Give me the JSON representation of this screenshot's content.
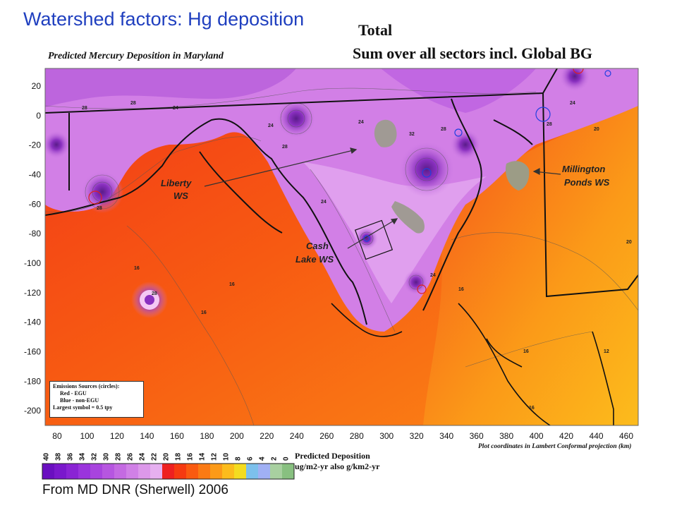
{
  "slide": {
    "title": "Watershed factors: Hg deposition",
    "source": "From MD DNR (Sherwell) 2006"
  },
  "figure": {
    "total_label": "Total",
    "subtitle": "Sum over all sectors incl. Global BG",
    "map_title": "Predicted Mercury Deposition in Maryland",
    "plot_note": "Plot coordinates in Lambert Conformal projection (km)",
    "x_ticks": [
      "80",
      "100",
      "120",
      "140",
      "160",
      "180",
      "200",
      "220",
      "240",
      "260",
      "280",
      "300",
      "320",
      "340",
      "360",
      "380",
      "400",
      "420",
      "440",
      "460"
    ],
    "y_ticks": [
      "20",
      "0",
      "-20",
      "-40",
      "-60",
      "-80",
      "-100",
      "-120",
      "-140",
      "-160",
      "-180",
      "-200"
    ],
    "x_range": [
      72,
      468
    ],
    "y_range": [
      -210,
      32
    ],
    "watersheds": [
      {
        "name": "Liberty WS"
      },
      {
        "name": "Cash Lake WS"
      },
      {
        "name": "Millington Ponds WS"
      }
    ],
    "watershed_label_lines": {
      "liberty": [
        "Liberty",
        "WS"
      ],
      "cash": [
        "Cash",
        "Lake WS"
      ],
      "millington": [
        "Millington",
        "Ponds WS"
      ]
    },
    "emissions_box": {
      "title": "Emissions Sources (circles):",
      "red": "Red - EGU",
      "blue": "Blue - non-EGU",
      "largest": "Largest symbol = 0.5 tpy"
    },
    "contour_labels": [
      "28",
      "28",
      "24",
      "24",
      "28",
      "24",
      "28",
      "28",
      "32",
      "28",
      "24",
      "24",
      "20",
      "16",
      "16",
      "16",
      "16",
      "16",
      "16",
      "12",
      "28",
      "24",
      "20"
    ],
    "color_scale": {
      "labels": [
        "40",
        "38",
        "36",
        "34",
        "32",
        "30",
        "28",
        "26",
        "24",
        "22",
        "20",
        "18",
        "16",
        "14",
        "12",
        "10",
        "8",
        "6",
        "4",
        "2",
        "0"
      ],
      "colors": [
        "#6a0fc0",
        "#7a18cc",
        "#8a24d4",
        "#9a34dc",
        "#a844de",
        "#b656e0",
        "#c46ae2",
        "#d080e6",
        "#dc98ea",
        "#e6b0f0",
        "#ee2020",
        "#f63a10",
        "#fa5a10",
        "#fb7a14",
        "#fc9a18",
        "#fcbc1c",
        "#f4dc20",
        "#7cc0ec",
        "#a0b0f4",
        "#a8d0a0",
        "#88c080"
      ],
      "title_lines": [
        "Predicted Deposition",
        "ug/m2-yr also g/km2-yr"
      ]
    }
  }
}
